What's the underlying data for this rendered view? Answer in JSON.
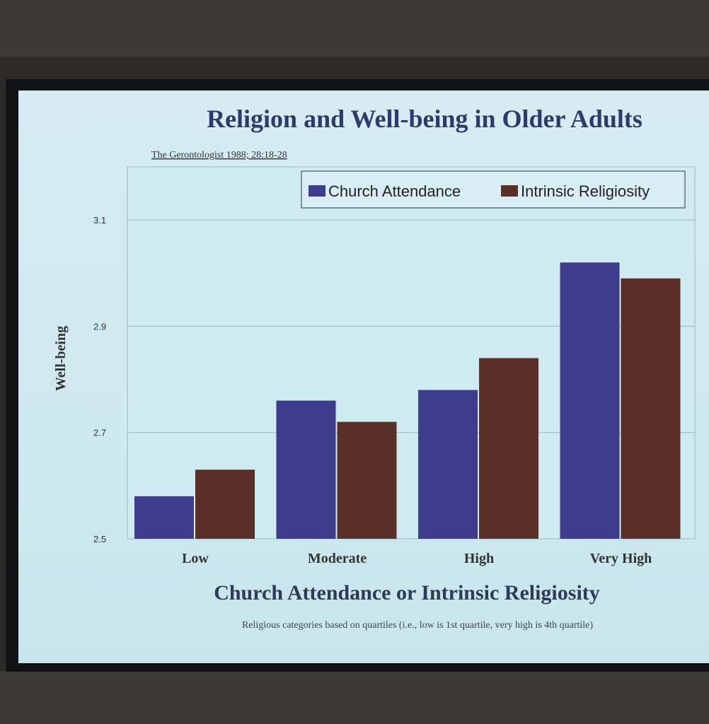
{
  "slide": {
    "source_citation": "The Gerontologist 1988; 28:18-28",
    "footnote": "Religious categories based on quartiles (i.e., low is 1st quartile, very high is 4th quartile)"
  },
  "chart_data": {
    "type": "bar",
    "title": "Religion and Well-being in Older Adults",
    "xlabel": "Church Attendance or Intrinsic Religiosity",
    "ylabel": "Well-being",
    "categories": [
      "Low",
      "Moderate",
      "High",
      "Very High"
    ],
    "series": [
      {
        "name": "Church Attendance",
        "values": [
          2.58,
          2.76,
          2.78,
          3.02
        ],
        "color": "#3e3c8c"
      },
      {
        "name": "Intrinsic Religiosity",
        "values": [
          2.63,
          2.72,
          2.84,
          2.99
        ],
        "color": "#5a2f28"
      }
    ],
    "ylim": [
      2.5,
      3.2
    ],
    "yticks": [
      "2.5",
      "2.7",
      "2.9",
      "3.1"
    ],
    "grid": true,
    "legend_position": "top-right"
  }
}
